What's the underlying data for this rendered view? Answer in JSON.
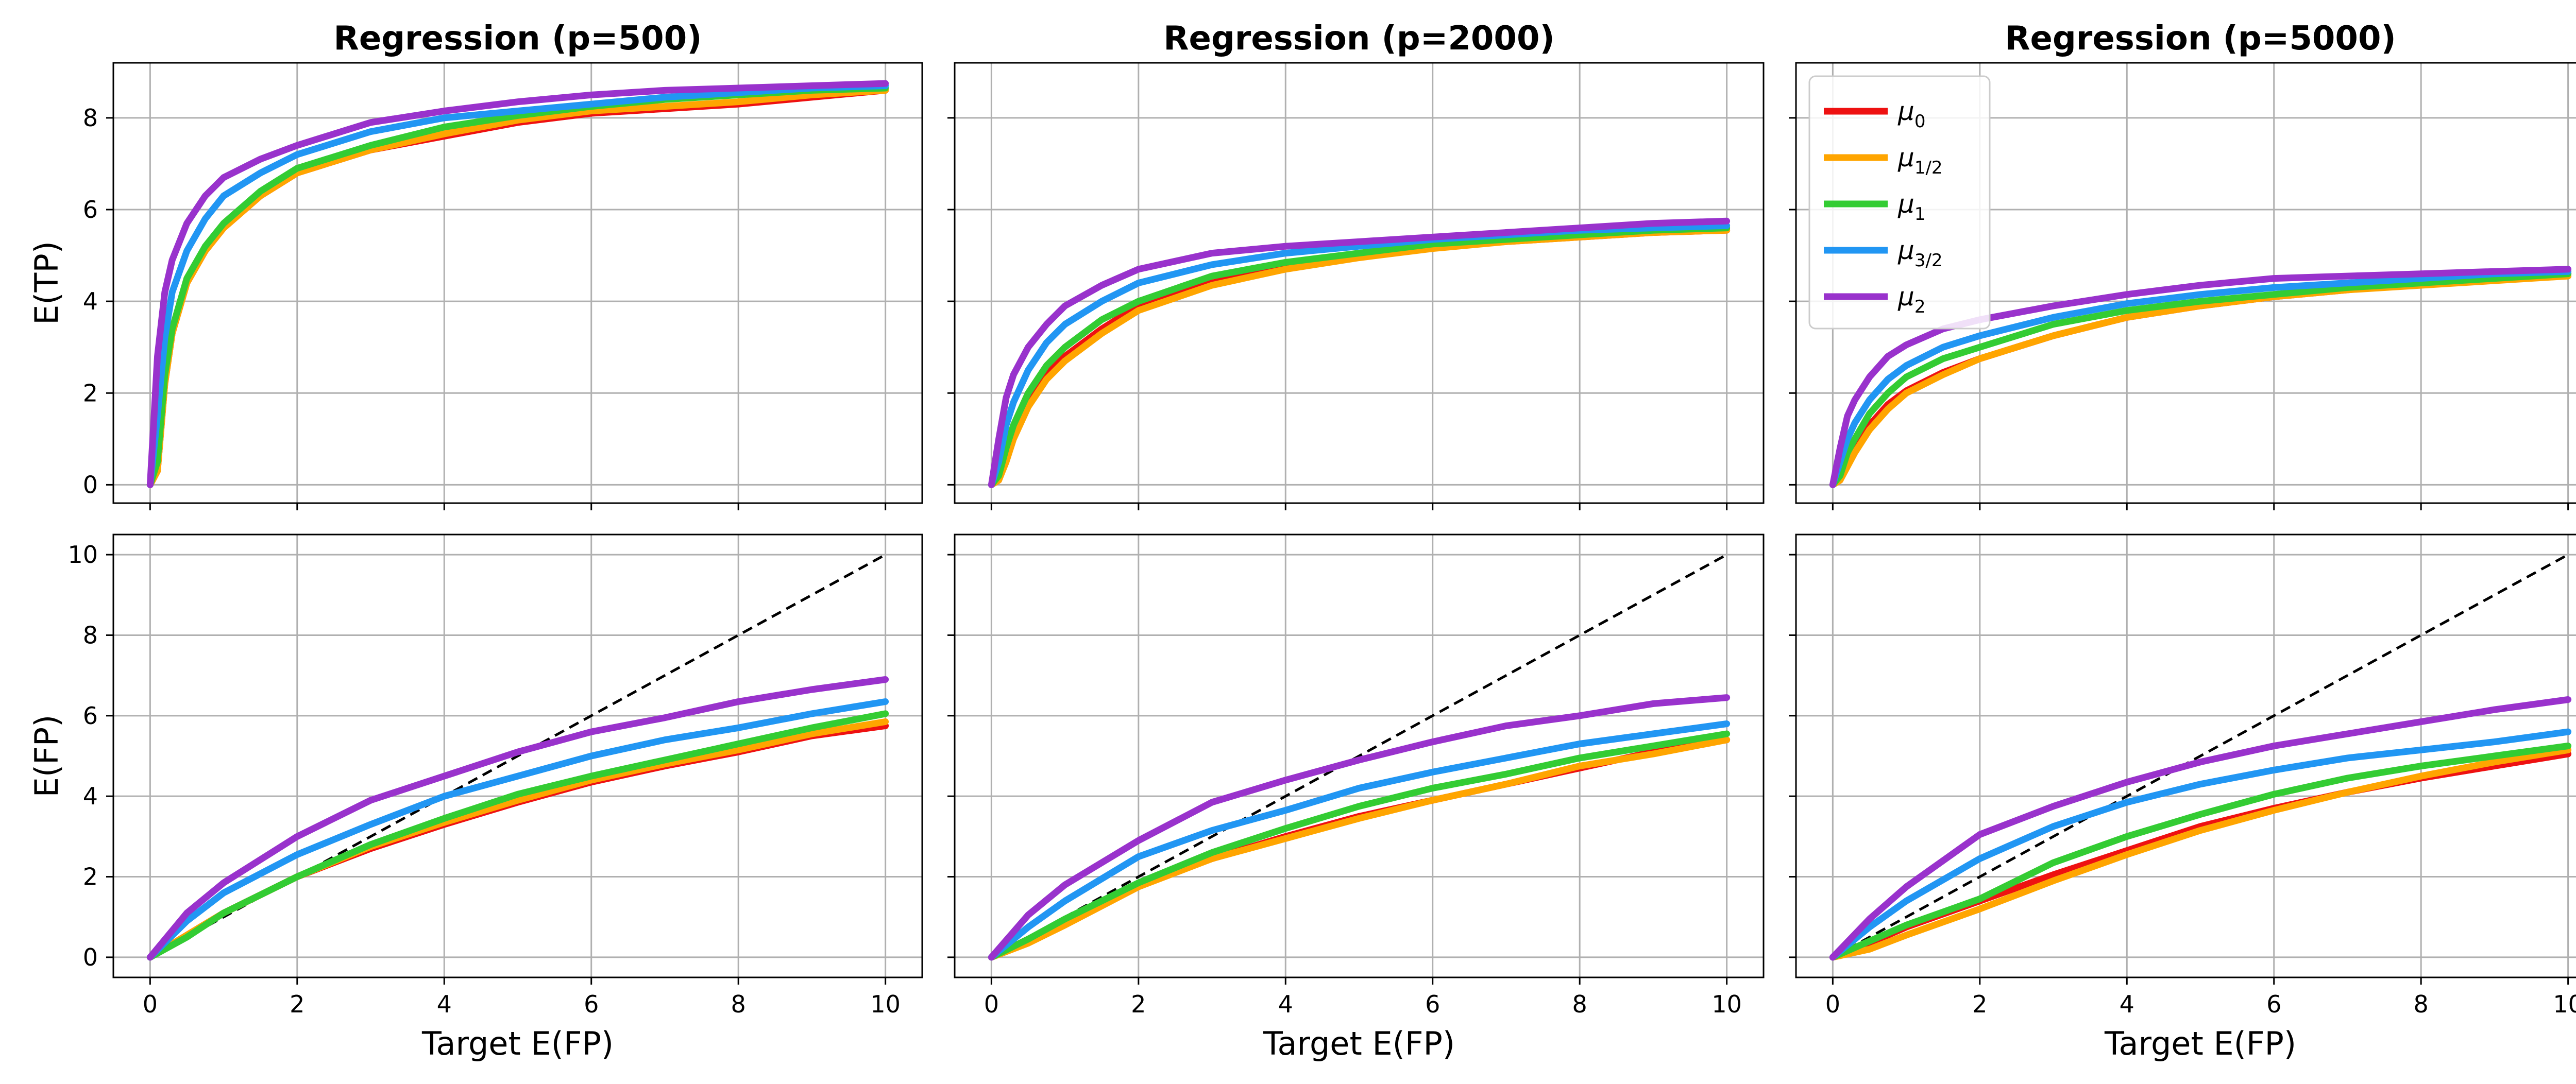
{
  "colors": {
    "mu0": "#ee1111",
    "mu_half": "#ffa500",
    "mu1": "#33cc33",
    "mu_3half": "#2196f3",
    "mu2": "#9932cc",
    "reference": "#000000",
    "grid": "#b0b0b0",
    "frame": "#000000"
  },
  "legend": {
    "placement": "top-left of Regression (p=5000) top panel",
    "entries": [
      {
        "key": "mu0",
        "symbol": "μ",
        "subscript": "0"
      },
      {
        "key": "mu_half",
        "symbol": "μ",
        "subscript": "1/2"
      },
      {
        "key": "mu1",
        "symbol": "μ",
        "subscript": "1"
      },
      {
        "key": "mu_3half",
        "symbol": "μ",
        "subscript": "3/2"
      },
      {
        "key": "mu2",
        "symbol": "μ",
        "subscript": "2"
      }
    ]
  },
  "chart_data": [
    {
      "type": "line",
      "row": "top",
      "col": 0,
      "title": "Regression (p=500)",
      "xlabel": "",
      "ylabel": "E(TP)",
      "xlim": [
        -0.5,
        10.5
      ],
      "ylim": [
        -0.4,
        9.2
      ],
      "xticks": [
        0,
        2,
        4,
        6,
        8,
        10
      ],
      "yticks": [
        0,
        2,
        4,
        6,
        8
      ],
      "show_xtick_labels": false,
      "show_ytick_labels": true,
      "grid": true,
      "x": [
        0,
        0.1,
        0.2,
        0.3,
        0.5,
        0.75,
        1,
        1.5,
        2,
        3,
        4,
        5,
        6,
        7,
        8,
        9,
        10
      ],
      "series": [
        {
          "key": "mu0",
          "values": [
            0,
            0.3,
            2.2,
            3.3,
            4.4,
            5.1,
            5.6,
            6.3,
            6.8,
            7.3,
            7.6,
            7.9,
            8.1,
            8.2,
            8.3,
            8.45,
            8.6
          ]
        },
        {
          "key": "mu_half",
          "values": [
            0,
            0.3,
            2.2,
            3.3,
            4.4,
            5.1,
            5.6,
            6.3,
            6.8,
            7.3,
            7.65,
            7.95,
            8.15,
            8.25,
            8.35,
            8.5,
            8.6
          ]
        },
        {
          "key": "mu1",
          "values": [
            0,
            0.5,
            2.4,
            3.4,
            4.5,
            5.2,
            5.7,
            6.4,
            6.9,
            7.4,
            7.8,
            8.05,
            8.25,
            8.4,
            8.5,
            8.6,
            8.65
          ]
        },
        {
          "key": "mu_3half",
          "values": [
            0,
            1.5,
            3.2,
            4.2,
            5.1,
            5.8,
            6.3,
            6.8,
            7.2,
            7.7,
            8.0,
            8.15,
            8.3,
            8.45,
            8.55,
            8.65,
            8.7
          ]
        },
        {
          "key": "mu2",
          "values": [
            0,
            2.8,
            4.2,
            4.9,
            5.7,
            6.3,
            6.7,
            7.1,
            7.4,
            7.9,
            8.15,
            8.35,
            8.5,
            8.6,
            8.65,
            8.7,
            8.75
          ]
        }
      ]
    },
    {
      "type": "line",
      "row": "top",
      "col": 1,
      "title": "Regression (p=2000)",
      "xlabel": "",
      "ylabel": "",
      "xlim": [
        -0.5,
        10.5
      ],
      "ylim": [
        -0.4,
        9.2
      ],
      "xticks": [
        0,
        2,
        4,
        6,
        8,
        10
      ],
      "yticks": [
        0,
        2,
        4,
        6,
        8
      ],
      "show_xtick_labels": false,
      "show_ytick_labels": false,
      "grid": true,
      "x": [
        0,
        0.1,
        0.2,
        0.3,
        0.5,
        0.75,
        1,
        1.5,
        2,
        3,
        4,
        5,
        6,
        7,
        8,
        9,
        10
      ],
      "series": [
        {
          "key": "mu0",
          "values": [
            0,
            0.1,
            0.6,
            1.1,
            1.8,
            2.4,
            2.8,
            3.4,
            3.9,
            4.4,
            4.75,
            5.0,
            5.2,
            5.3,
            5.4,
            5.5,
            5.55
          ]
        },
        {
          "key": "mu_half",
          "values": [
            0,
            0.1,
            0.5,
            1.0,
            1.7,
            2.3,
            2.7,
            3.3,
            3.8,
            4.35,
            4.7,
            4.95,
            5.15,
            5.3,
            5.4,
            5.5,
            5.55
          ]
        },
        {
          "key": "mu1",
          "values": [
            0,
            0.2,
            0.8,
            1.3,
            2.0,
            2.6,
            3.0,
            3.6,
            4.0,
            4.55,
            4.85,
            5.05,
            5.25,
            5.35,
            5.45,
            5.55,
            5.6
          ]
        },
        {
          "key": "mu_3half",
          "values": [
            0,
            0.5,
            1.3,
            1.8,
            2.5,
            3.1,
            3.5,
            4.0,
            4.4,
            4.8,
            5.05,
            5.2,
            5.35,
            5.45,
            5.55,
            5.6,
            5.65
          ]
        },
        {
          "key": "mu2",
          "values": [
            0,
            1.0,
            1.9,
            2.4,
            3.0,
            3.5,
            3.9,
            4.35,
            4.7,
            5.05,
            5.2,
            5.3,
            5.4,
            5.5,
            5.6,
            5.7,
            5.75
          ]
        }
      ]
    },
    {
      "type": "line",
      "row": "top",
      "col": 2,
      "title": "Regression (p=5000)",
      "xlabel": "",
      "ylabel": "",
      "xlim": [
        -0.5,
        10.5
      ],
      "ylim": [
        -0.4,
        9.2
      ],
      "xticks": [
        0,
        2,
        4,
        6,
        8,
        10
      ],
      "yticks": [
        0,
        2,
        4,
        6,
        8
      ],
      "show_xtick_labels": false,
      "show_ytick_labels": false,
      "grid": true,
      "x": [
        0,
        0.1,
        0.2,
        0.3,
        0.5,
        0.75,
        1,
        1.5,
        2,
        3,
        4,
        5,
        6,
        7,
        8,
        9,
        10
      ],
      "series": [
        {
          "key": "mu0",
          "values": [
            0,
            0.1,
            0.5,
            0.8,
            1.3,
            1.75,
            2.05,
            2.45,
            2.75,
            3.25,
            3.65,
            3.9,
            4.1,
            4.25,
            4.4,
            4.5,
            4.6
          ]
        },
        {
          "key": "mu_half",
          "values": [
            0,
            0.1,
            0.4,
            0.7,
            1.2,
            1.65,
            2.0,
            2.4,
            2.75,
            3.25,
            3.65,
            3.9,
            4.1,
            4.25,
            4.35,
            4.45,
            4.55
          ]
        },
        {
          "key": "mu1",
          "values": [
            0,
            0.2,
            0.7,
            1.0,
            1.55,
            2.0,
            2.35,
            2.75,
            3.0,
            3.5,
            3.8,
            4.0,
            4.15,
            4.3,
            4.4,
            4.5,
            4.6
          ]
        },
        {
          "key": "mu_3half",
          "values": [
            0,
            0.5,
            1.0,
            1.35,
            1.85,
            2.3,
            2.6,
            3.0,
            3.25,
            3.65,
            3.95,
            4.15,
            4.3,
            4.4,
            4.5,
            4.6,
            4.65
          ]
        },
        {
          "key": "mu2",
          "values": [
            0,
            0.8,
            1.5,
            1.85,
            2.35,
            2.8,
            3.05,
            3.4,
            3.6,
            3.9,
            4.15,
            4.35,
            4.5,
            4.55,
            4.6,
            4.65,
            4.7
          ]
        }
      ]
    },
    {
      "type": "line",
      "row": "bottom",
      "col": 0,
      "title": "",
      "xlabel": "Target E(FP)",
      "ylabel": "E(FP)",
      "xlim": [
        -0.5,
        10.5
      ],
      "ylim": [
        -0.5,
        10.5
      ],
      "xticks": [
        0,
        2,
        4,
        6,
        8,
        10
      ],
      "yticks": [
        0,
        2,
        4,
        6,
        8,
        10
      ],
      "show_xtick_labels": true,
      "show_ytick_labels": true,
      "grid": true,
      "reference_line": {
        "style": "dashed",
        "x": [
          0,
          10
        ],
        "y": [
          0,
          10
        ]
      },
      "x": [
        0,
        0.5,
        1,
        2,
        3,
        4,
        5,
        6,
        7,
        8,
        9,
        10
      ],
      "series": [
        {
          "key": "mu0",
          "values": [
            0,
            0.55,
            1.1,
            2.0,
            2.7,
            3.3,
            3.85,
            4.35,
            4.75,
            5.1,
            5.5,
            5.75
          ]
        },
        {
          "key": "mu_half",
          "values": [
            0,
            0.55,
            1.1,
            2.0,
            2.75,
            3.35,
            3.9,
            4.4,
            4.8,
            5.15,
            5.55,
            5.85
          ]
        },
        {
          "key": "mu1",
          "values": [
            0,
            0.5,
            1.1,
            2.0,
            2.8,
            3.45,
            4.05,
            4.5,
            4.9,
            5.3,
            5.7,
            6.05
          ]
        },
        {
          "key": "mu_3half",
          "values": [
            0,
            0.9,
            1.6,
            2.55,
            3.3,
            4.0,
            4.5,
            5.0,
            5.4,
            5.7,
            6.05,
            6.35
          ]
        },
        {
          "key": "mu2",
          "values": [
            0,
            1.1,
            1.85,
            3.0,
            3.9,
            4.5,
            5.1,
            5.6,
            5.95,
            6.35,
            6.65,
            6.9
          ]
        }
      ]
    },
    {
      "type": "line",
      "row": "bottom",
      "col": 1,
      "title": "",
      "xlabel": "Target E(FP)",
      "ylabel": "",
      "xlim": [
        -0.5,
        10.5
      ],
      "ylim": [
        -0.5,
        10.5
      ],
      "xticks": [
        0,
        2,
        4,
        6,
        8,
        10
      ],
      "yticks": [
        0,
        2,
        4,
        6,
        8,
        10
      ],
      "show_xtick_labels": true,
      "show_ytick_labels": false,
      "grid": true,
      "reference_line": {
        "style": "dashed",
        "x": [
          0,
          10
        ],
        "y": [
          0,
          10
        ]
      },
      "x": [
        0,
        0.5,
        1,
        2,
        3,
        4,
        5,
        6,
        7,
        8,
        9,
        10
      ],
      "series": [
        {
          "key": "mu0",
          "values": [
            0,
            0.45,
            0.9,
            1.8,
            2.45,
            3.0,
            3.5,
            3.9,
            4.3,
            4.7,
            5.1,
            5.4
          ]
        },
        {
          "key": "mu_half",
          "values": [
            0,
            0.35,
            0.8,
            1.75,
            2.45,
            2.95,
            3.45,
            3.9,
            4.3,
            4.75,
            5.05,
            5.4
          ]
        },
        {
          "key": "mu1",
          "values": [
            0,
            0.45,
            0.95,
            1.85,
            2.6,
            3.2,
            3.75,
            4.2,
            4.55,
            4.95,
            5.25,
            5.55
          ]
        },
        {
          "key": "mu_3half",
          "values": [
            0,
            0.75,
            1.4,
            2.5,
            3.15,
            3.65,
            4.2,
            4.6,
            4.95,
            5.3,
            5.55,
            5.8
          ]
        },
        {
          "key": "mu2",
          "values": [
            0,
            1.05,
            1.8,
            2.9,
            3.85,
            4.4,
            4.9,
            5.35,
            5.75,
            6.0,
            6.3,
            6.45
          ]
        }
      ]
    },
    {
      "type": "line",
      "row": "bottom",
      "col": 2,
      "title": "",
      "xlabel": "Target E(FP)",
      "ylabel": "",
      "xlim": [
        -0.5,
        10.5
      ],
      "ylim": [
        -0.5,
        10.5
      ],
      "xticks": [
        0,
        2,
        4,
        6,
        8,
        10
      ],
      "yticks": [
        0,
        2,
        4,
        6,
        8,
        10
      ],
      "show_xtick_labels": true,
      "show_ytick_labels": false,
      "grid": true,
      "reference_line": {
        "style": "dashed",
        "x": [
          0,
          10
        ],
        "y": [
          0,
          10
        ]
      },
      "x": [
        0,
        0.5,
        1,
        2,
        3,
        4,
        5,
        6,
        7,
        8,
        9,
        10
      ],
      "series": [
        {
          "key": "mu0",
          "values": [
            0,
            0.35,
            0.75,
            1.4,
            2.05,
            2.65,
            3.25,
            3.7,
            4.1,
            4.45,
            4.75,
            5.05
          ]
        },
        {
          "key": "mu_half",
          "values": [
            0,
            0.2,
            0.55,
            1.2,
            1.9,
            2.55,
            3.15,
            3.65,
            4.1,
            4.5,
            4.85,
            5.15
          ]
        },
        {
          "key": "mu1",
          "values": [
            0,
            0.4,
            0.8,
            1.45,
            2.35,
            3.0,
            3.55,
            4.05,
            4.45,
            4.75,
            5.0,
            5.25
          ]
        },
        {
          "key": "mu_3half",
          "values": [
            0,
            0.75,
            1.4,
            2.45,
            3.25,
            3.85,
            4.3,
            4.65,
            4.95,
            5.15,
            5.35,
            5.6
          ]
        },
        {
          "key": "mu2",
          "values": [
            0,
            0.95,
            1.75,
            3.05,
            3.75,
            4.35,
            4.85,
            5.25,
            5.55,
            5.85,
            6.15,
            6.4
          ]
        }
      ]
    }
  ]
}
